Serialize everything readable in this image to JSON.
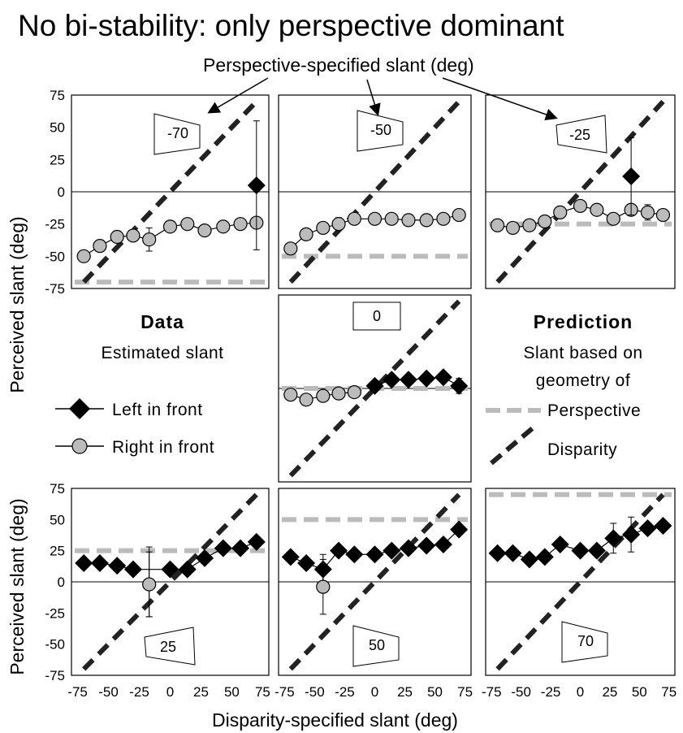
{
  "title": "No bi-stability: only perspective dominant",
  "top_annotation": "Perspective-specified slant (deg)",
  "xlabel": "Disparity-specified slant (deg)",
  "ylabel": "Perceived slant (deg)",
  "data_box": {
    "heading": "Data",
    "subtitle": "Estimated slant"
  },
  "prediction_box": {
    "heading": "Prediction",
    "line1": "Slant based on",
    "line2": "geometry of"
  },
  "legend": {
    "left_in_front": "Left in front",
    "right_in_front": "Right in front",
    "perspective": "Perspective",
    "disparity": "Disparity"
  },
  "colors": {
    "left": "#000000",
    "right": "#bbbbbb",
    "perspective": "#bbbbbb",
    "disparity": "#222222"
  },
  "chart_data": [
    {
      "type": "line",
      "panel": "-70",
      "perspective_slant": -70,
      "xlim": [
        -80,
        80
      ],
      "ylim": [
        -75,
        75
      ],
      "ticks": [
        -75,
        -50,
        -25,
        0,
        25,
        50,
        75
      ],
      "series": [
        {
          "name": "Right in front",
          "x": [
            -70,
            -57,
            -43,
            -30,
            -17,
            0,
            14,
            28,
            43,
            57,
            70
          ],
          "y": [
            -50,
            -42,
            -35,
            -34,
            -37,
            -27,
            -25,
            -30,
            -27,
            -25,
            -24
          ],
          "err": [
            [
              -30,
              4
            ],
            [
              -17,
              9
            ]
          ]
        },
        {
          "name": "Left in front",
          "x": [
            70
          ],
          "y": [
            5
          ],
          "err": [
            [
              70,
              50
            ]
          ]
        }
      ]
    },
    {
      "type": "line",
      "panel": "-50",
      "perspective_slant": -50,
      "xlim": [
        -80,
        80
      ],
      "ylim": [
        -75,
        75
      ],
      "ticks": [
        -75,
        -50,
        -25,
        0,
        25,
        50,
        75
      ],
      "series": [
        {
          "name": "Right in front",
          "x": [
            -70,
            -57,
            -43,
            -30,
            -17,
            0,
            14,
            28,
            43,
            57,
            70
          ],
          "y": [
            -44,
            -33,
            -28,
            -25,
            -21,
            -21,
            -21,
            -22,
            -22,
            -21,
            -18
          ],
          "err": [
            [
              -30,
              5
            ]
          ]
        }
      ]
    },
    {
      "type": "line",
      "panel": "-25",
      "perspective_slant": -25,
      "xlim": [
        -80,
        80
      ],
      "ylim": [
        -75,
        75
      ],
      "ticks": [
        -75,
        -50,
        -25,
        0,
        25,
        50,
        75
      ],
      "series": [
        {
          "name": "Right in front",
          "x": [
            -70,
            -57,
            -43,
            -30,
            -17,
            0,
            14,
            28,
            43,
            57,
            70
          ],
          "y": [
            -26,
            -28,
            -26,
            -23,
            -16,
            -11,
            -14,
            -21,
            -14,
            -16,
            -18
          ],
          "err": [
            [
              57,
              6
            ]
          ]
        },
        {
          "name": "Left in front",
          "x": [
            43
          ],
          "y": [
            12
          ],
          "err": [
            [
              43,
              30
            ]
          ]
        }
      ]
    },
    {
      "type": "line",
      "panel": "0",
      "perspective_slant": 0,
      "xlim": [
        -80,
        80
      ],
      "ylim": [
        -75,
        75
      ],
      "ticks": [
        -75,
        -50,
        -25,
        0,
        25,
        50,
        75
      ],
      "series": [
        {
          "name": "Right in front",
          "x": [
            -70,
            -57,
            -43,
            -30,
            -17
          ],
          "y": [
            -5,
            -9,
            -6,
            -4,
            -3
          ],
          "err": []
        },
        {
          "name": "Left in front",
          "x": [
            0,
            14,
            28,
            43,
            57,
            70
          ],
          "y": [
            2,
            7,
            7,
            8,
            9,
            2
          ],
          "err": [
            [
              70,
              6
            ]
          ]
        }
      ]
    },
    {
      "type": "line",
      "panel": "25",
      "perspective_slant": 25,
      "xlim": [
        -80,
        80
      ],
      "ylim": [
        -75,
        75
      ],
      "ticks": [
        -75,
        -50,
        -25,
        0,
        25,
        50,
        75
      ],
      "series": [
        {
          "name": "Left in front",
          "x": [
            -70,
            -57,
            -43,
            -30,
            0,
            14,
            28,
            43,
            57,
            70
          ],
          "y": [
            15,
            15,
            13,
            10,
            10,
            10,
            19,
            27,
            27,
            32
          ],
          "err": [
            [
              -17,
              28
            ]
          ]
        },
        {
          "name": "Right in front",
          "x": [
            -17
          ],
          "y": [
            -2
          ],
          "err": [
            [
              -17,
              26
            ]
          ]
        }
      ]
    },
    {
      "type": "line",
      "panel": "50",
      "perspective_slant": 50,
      "xlim": [
        -80,
        80
      ],
      "ylim": [
        -75,
        75
      ],
      "ticks": [
        -75,
        -50,
        -25,
        0,
        25,
        50,
        75
      ],
      "series": [
        {
          "name": "Left in front",
          "x": [
            -70,
            -57,
            -43,
            -30,
            -17,
            0,
            14,
            28,
            43,
            57,
            70
          ],
          "y": [
            20,
            15,
            10,
            25,
            22,
            22,
            25,
            27,
            29,
            30,
            42
          ],
          "err": [
            [
              -43,
              12
            ]
          ]
        },
        {
          "name": "Right in front",
          "x": [
            -43
          ],
          "y": [
            -4
          ],
          "err": [
            [
              -43,
              22
            ]
          ]
        }
      ]
    },
    {
      "type": "line",
      "panel": "70",
      "perspective_slant": 70,
      "xlim": [
        -80,
        80
      ],
      "ylim": [
        -75,
        75
      ],
      "ticks": [
        -75,
        -50,
        -25,
        0,
        25,
        50,
        75
      ],
      "series": [
        {
          "name": "Left in front",
          "x": [
            -70,
            -57,
            -43,
            -30,
            -17,
            0,
            14,
            28,
            43,
            57,
            70
          ],
          "y": [
            23,
            23,
            18,
            20,
            30,
            25,
            25,
            35,
            38,
            43,
            45
          ],
          "err": [
            [
              28,
              12
            ],
            [
              43,
              14
            ]
          ]
        }
      ]
    }
  ]
}
